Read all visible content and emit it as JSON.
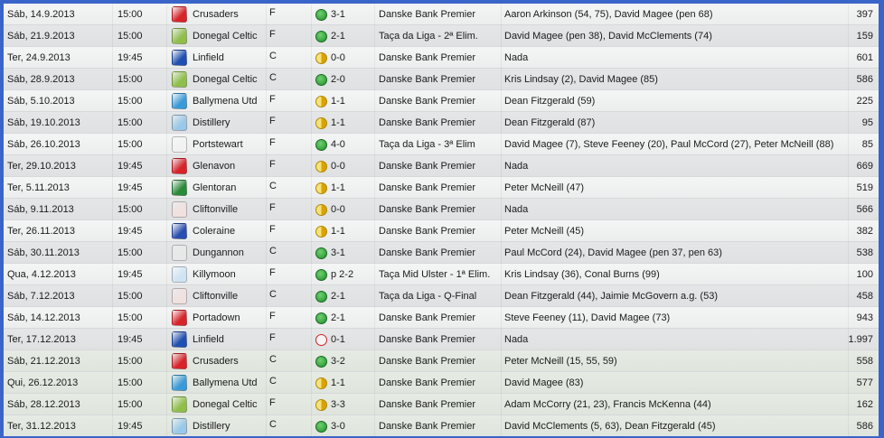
{
  "colors": {
    "border": "#3a64c8",
    "win": "#2a9a35",
    "draw": "#e0b000",
    "loss": "#cc2222"
  },
  "rows": [
    {
      "date": "Sáb, 14.9.2013",
      "time": "15:00",
      "team": "Crusaders",
      "badge": "#d8232a",
      "venue": "F",
      "result": "W",
      "score": "3-1",
      "competition": "Danske Bank Premier",
      "scorers": "Aaron Arkinson (54, 75), David Magee (pen 68)",
      "attendance": "397"
    },
    {
      "date": "Sáb, 21.9.2013",
      "time": "15:00",
      "team": "Donegal Celtic",
      "badge": "#8fbf4a",
      "venue": "F",
      "result": "W",
      "score": "2-1",
      "competition": "Taça da Liga - 2ª Elim.",
      "scorers": "David Magee (pen 38), David McClements (74)",
      "attendance": "159"
    },
    {
      "date": "Ter, 24.9.2013",
      "time": "19:45",
      "team": "Linfield",
      "badge": "#1f4fb0",
      "venue": "C",
      "result": "D",
      "score": "0-0",
      "competition": "Danske Bank Premier",
      "scorers": "Nada",
      "attendance": "601"
    },
    {
      "date": "Sáb, 28.9.2013",
      "time": "15:00",
      "team": "Donegal Celtic",
      "badge": "#8fbf4a",
      "venue": "C",
      "result": "W",
      "score": "2-0",
      "competition": "Danske Bank Premier",
      "scorers": "Kris Lindsay (2), David Magee (85)",
      "attendance": "586"
    },
    {
      "date": "Sáb, 5.10.2013",
      "time": "15:00",
      "team": "Ballymena Utd",
      "badge": "#3a9ad8",
      "venue": "F",
      "result": "D",
      "score": "1-1",
      "competition": "Danske Bank Premier",
      "scorers": "Dean Fitzgerald (59)",
      "attendance": "225"
    },
    {
      "date": "Sáb, 19.10.2013",
      "time": "15:00",
      "team": "Distillery",
      "badge": "#9ac8e8",
      "venue": "F",
      "result": "D",
      "score": "1-1",
      "competition": "Danske Bank Premier",
      "scorers": "Dean Fitzgerald (87)",
      "attendance": "95"
    },
    {
      "date": "Sáb, 26.10.2013",
      "time": "15:00",
      "team": "Portstewart",
      "badge": "#f2f2f2",
      "venue": "F",
      "result": "W",
      "score": "4-0",
      "competition": "Taça da Liga - 3ª Elim",
      "scorers": "David Magee (7), Steve Feeney (20), Paul McCord (27), Peter McNeill (88)",
      "attendance": "85"
    },
    {
      "date": "Ter, 29.10.2013",
      "time": "19:45",
      "team": "Glenavon",
      "badge": "#d8232a",
      "venue": "F",
      "result": "D",
      "score": "0-0",
      "competition": "Danske Bank Premier",
      "scorers": "Nada",
      "attendance": "669"
    },
    {
      "date": "Ter, 5.11.2013",
      "time": "19:45",
      "team": "Glentoran",
      "badge": "#2a8a3a",
      "venue": "C",
      "result": "D",
      "score": "1-1",
      "competition": "Danske Bank Premier",
      "scorers": "Peter McNeill (47)",
      "attendance": "519"
    },
    {
      "date": "Sáb, 9.11.2013",
      "time": "15:00",
      "team": "Cliftonville",
      "badge": "#f0e0e0",
      "venue": "F",
      "result": "D",
      "score": "0-0",
      "competition": "Danske Bank Premier",
      "scorers": "Nada",
      "attendance": "566"
    },
    {
      "date": "Ter, 26.11.2013",
      "time": "19:45",
      "team": "Coleraine",
      "badge": "#2a4fb0",
      "venue": "F",
      "result": "D",
      "score": "1-1",
      "competition": "Danske Bank Premier",
      "scorers": "Peter McNeill (45)",
      "attendance": "382"
    },
    {
      "date": "Sáb, 30.11.2013",
      "time": "15:00",
      "team": "Dungannon",
      "badge": "#e8e8e8",
      "venue": "C",
      "result": "W",
      "score": "3-1",
      "competition": "Danske Bank Premier",
      "scorers": "Paul McCord (24), David Magee (pen 37, pen 63)",
      "attendance": "538"
    },
    {
      "date": "Qua, 4.12.2013",
      "time": "19:45",
      "team": "Killymoon",
      "badge": "#cfe4f2",
      "venue": "F",
      "result": "W",
      "score": "p 2-2",
      "competition": "Taça Mid Ulster - 1ª Elim.",
      "scorers": "Kris Lindsay (36), Conal Burns (99)",
      "attendance": "100"
    },
    {
      "date": "Sáb, 7.12.2013",
      "time": "15:00",
      "team": "Cliftonville",
      "badge": "#f0e0e0",
      "venue": "C",
      "result": "W",
      "score": "2-1",
      "competition": "Taça da Liga - Q-Final",
      "scorers": "Dean Fitzgerald (44), Jaimie McGovern a.g. (53)",
      "attendance": "458"
    },
    {
      "date": "Sáb, 14.12.2013",
      "time": "15:00",
      "team": "Portadown",
      "badge": "#d8232a",
      "venue": "F",
      "result": "W",
      "score": "2-1",
      "competition": "Danske Bank Premier",
      "scorers": "Steve Feeney (11), David Magee (73)",
      "attendance": "943"
    },
    {
      "date": "Ter, 17.12.2013",
      "time": "19:45",
      "team": "Linfield",
      "badge": "#1f4fb0",
      "venue": "F",
      "result": "L",
      "score": "0-1",
      "competition": "Danske Bank Premier",
      "scorers": "Nada",
      "attendance": "1.997"
    },
    {
      "date": "Sáb, 21.12.2013",
      "time": "15:00",
      "team": "Crusaders",
      "badge": "#d8232a",
      "venue": "C",
      "result": "W",
      "score": "3-2",
      "competition": "Danske Bank Premier",
      "scorers": "Peter McNeill (15, 55, 59)",
      "attendance": "558"
    },
    {
      "date": "Qui, 26.12.2013",
      "time": "15:00",
      "team": "Ballymena Utd",
      "badge": "#3a9ad8",
      "venue": "C",
      "result": "D",
      "score": "1-1",
      "competition": "Danske Bank Premier",
      "scorers": "David Magee (83)",
      "attendance": "577"
    },
    {
      "date": "Sáb, 28.12.2013",
      "time": "15:00",
      "team": "Donegal Celtic",
      "badge": "#8fbf4a",
      "venue": "F",
      "result": "D",
      "score": "3-3",
      "competition": "Danske Bank Premier",
      "scorers": "Adam McCorry (21, 23), Francis McKenna (44)",
      "attendance": "162"
    },
    {
      "date": "Ter, 31.12.2013",
      "time": "19:45",
      "team": "Distillery",
      "badge": "#9ac8e8",
      "venue": "C",
      "result": "W",
      "score": "3-0",
      "competition": "Danske Bank Premier",
      "scorers": "David McClements (5, 63), Dean Fitzgerald (45)",
      "attendance": "586"
    }
  ]
}
